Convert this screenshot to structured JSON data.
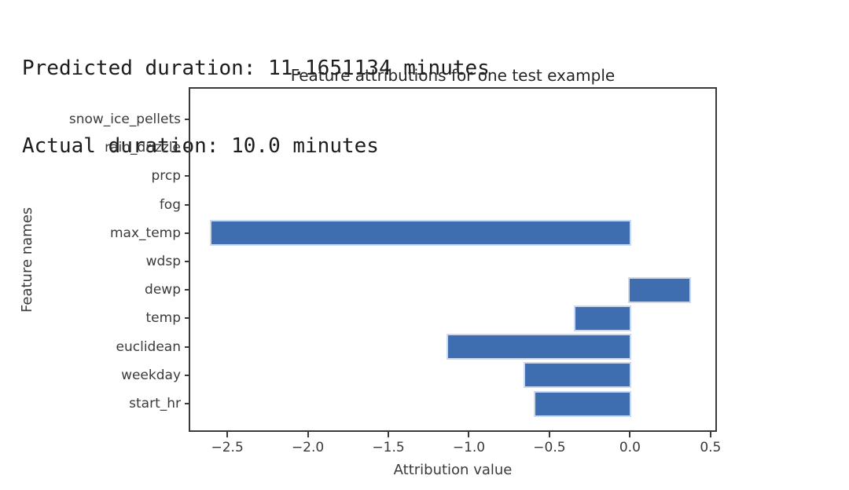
{
  "console": {
    "line1": "Predicted duration: 11.1651134 minutes",
    "line2": "Actual duration: 10.0 minutes"
  },
  "chart_data": {
    "type": "bar",
    "orientation": "horizontal",
    "title": "Feature attributions for one test example",
    "xlabel": "Attribution value",
    "ylabel": "Feature names",
    "categories": [
      "snow_ice_pellets",
      "rain_drizzle",
      "prcp",
      "fog",
      "max_temp",
      "wdsp",
      "dewp",
      "temp",
      "euclidean",
      "weekday",
      "start_hr"
    ],
    "values": [
      0,
      0,
      0,
      0,
      -2.6,
      0,
      0.37,
      -0.34,
      -1.13,
      -0.65,
      -0.59
    ],
    "xlim": [
      -2.73,
      0.53
    ],
    "xticks": [
      -2.5,
      -2.0,
      -1.5,
      -1.0,
      -0.5,
      0.0,
      0.5
    ],
    "grid": false,
    "legend": null,
    "bar_color": "#3e6eaf",
    "bar_edge_color": "#ccd8ee",
    "axis_color": "#3a3a3a"
  }
}
